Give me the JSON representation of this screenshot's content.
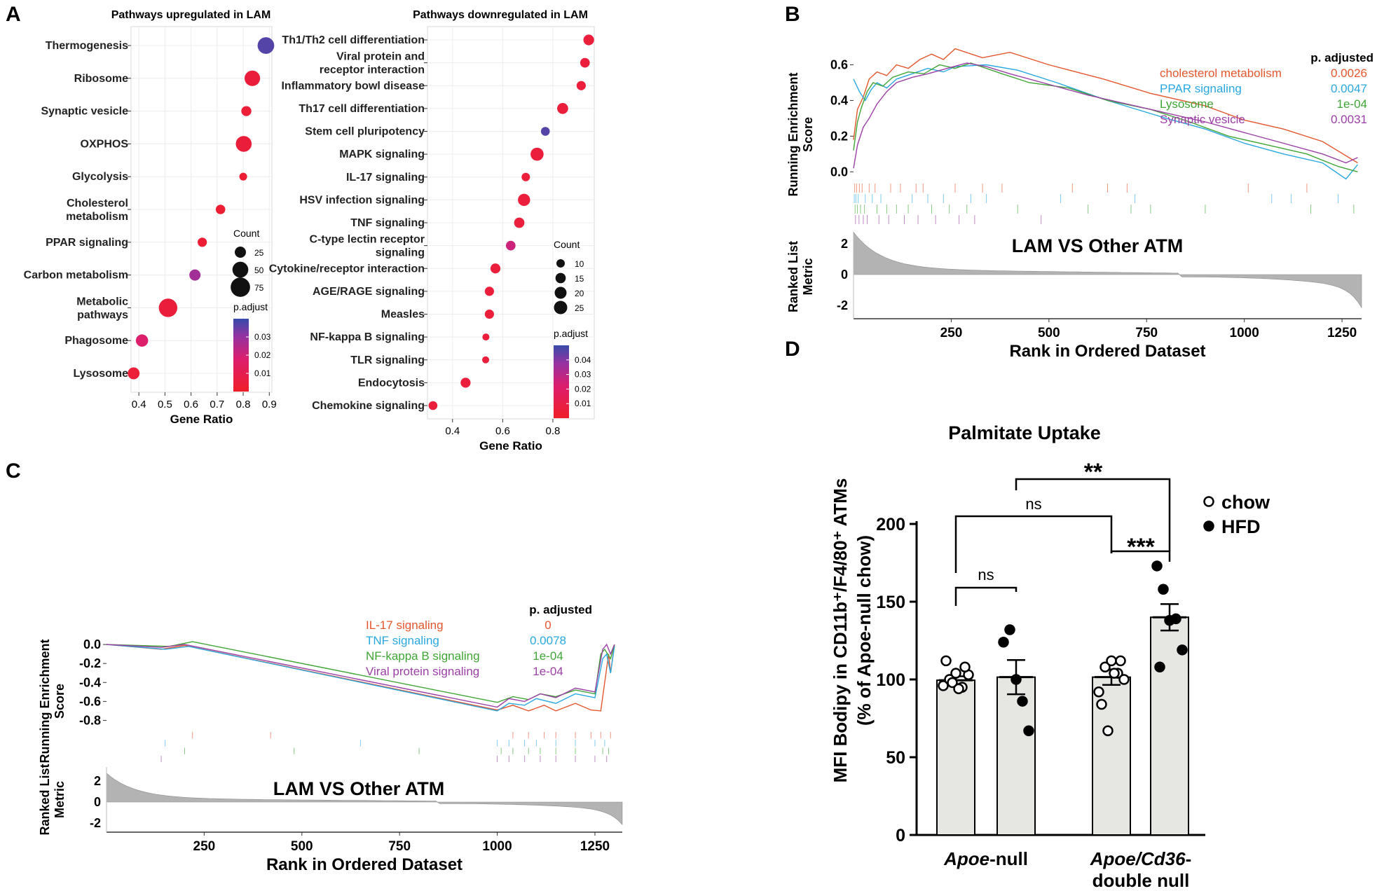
{
  "panels": {
    "A": "A",
    "B": "B",
    "C": "C",
    "D": "D"
  },
  "chart_data": [
    {
      "id": "A_up",
      "type": "scatter",
      "title": "Pathways upregulated in LAM",
      "xlabel": "Gene Ratio",
      "xlim": [
        0.37,
        0.91
      ],
      "xticks": [
        0.4,
        0.5,
        0.6,
        0.7,
        0.8,
        0.9
      ],
      "categories": [
        "Thermogenesis",
        "Ribosome",
        "Synaptic vesicle",
        "OXPHOS",
        "Glycolysis",
        "Cholesterol\nmetabolism",
        "PPAR signaling",
        "Carbon metabolism",
        "Metabolic\npathways",
        "Phagosome",
        "Lysosome"
      ],
      "x": [
        0.887,
        0.835,
        0.812,
        0.802,
        0.8,
        0.713,
        0.643,
        0.615,
        0.512,
        0.412,
        0.38
      ],
      "count": [
        55,
        48,
        20,
        50,
        12,
        18,
        17,
        25,
        68,
        30,
        28
      ],
      "padjust": [
        0.037,
        0.005,
        0.004,
        0.005,
        0.003,
        0.003,
        0.003,
        0.028,
        0.005,
        0.017,
        0.004
      ],
      "size_legend": {
        "title": "Count",
        "values": [
          25,
          50,
          75
        ]
      },
      "color_legend": {
        "title": "p.adjust",
        "ticks": [
          0.03,
          0.02,
          0.01
        ],
        "range": [
          0.0,
          0.04
        ]
      }
    },
    {
      "id": "A_down",
      "type": "scatter",
      "title": "Pathways downregulated in LAM",
      "xlabel": "Gene Ratio",
      "xlim": [
        0.3,
        0.965
      ],
      "xticks": [
        0.4,
        0.6,
        0.8
      ],
      "categories": [
        "Th1/Th2 cell differentiation",
        "Viral protein and\nreceptor interaction",
        "Inflammatory bowl disease",
        "Th17 cell differentiation",
        "Stem cell pluripotency",
        "MAPK signaling",
        "IL-17 signaling",
        "HSV infection signaling",
        "TNF signaling",
        "C-type lectin receptor\nsignaling",
        "Cytokine/receptor interaction",
        "AGE/RAGE signaling",
        "Measles",
        "NF-kappa B signaling",
        "TLR signaling",
        "Endocytosis",
        "Chemokine signaling"
      ],
      "x": [
        0.943,
        0.928,
        0.913,
        0.839,
        0.77,
        0.737,
        0.692,
        0.685,
        0.666,
        0.632,
        0.571,
        0.547,
        0.547,
        0.533,
        0.532,
        0.452,
        0.322
      ],
      "count": [
        16,
        13,
        12,
        17,
        11,
        24,
        10,
        21,
        15,
        13,
        14,
        12,
        12,
        7,
        7,
        14,
        11
      ],
      "padjust": [
        0.006,
        0.006,
        0.006,
        0.006,
        0.046,
        0.006,
        0.006,
        0.006,
        0.006,
        0.026,
        0.006,
        0.006,
        0.006,
        0.006,
        0.006,
        0.006,
        0.006
      ],
      "size_legend": {
        "title": "Count",
        "values": [
          10,
          15,
          20,
          25
        ]
      },
      "color_legend": {
        "title": "p.adjust",
        "ticks": [
          0.04,
          0.03,
          0.02,
          0.01
        ],
        "range": [
          0.0,
          0.05
        ]
      }
    },
    {
      "id": "B",
      "type": "line",
      "title": "LAM VS  Other ATM",
      "ylabel_top": "Running Enrichment\nScore",
      "ylabel_bottom": "Ranked List\nMetric",
      "xlabel": "Rank in Ordered Dataset",
      "xlim": [
        0,
        1300
      ],
      "xticks": [
        250,
        500,
        750,
        1000,
        1250
      ],
      "ylim": [
        -0.05,
        0.72
      ],
      "yticks": [
        0.0,
        0.2,
        0.4,
        0.6
      ],
      "metric_yticks": [
        2,
        0,
        -2
      ],
      "legend_title": "p. adjusted",
      "series": [
        {
          "name": "cholesterol metabolism",
          "padj": "0.0026",
          "color": "#e4572e",
          "points": [
            [
              0,
              0.18
            ],
            [
              10,
              0.35
            ],
            [
              25,
              0.42
            ],
            [
              40,
              0.52
            ],
            [
              60,
              0.56
            ],
            [
              85,
              0.54
            ],
            [
              110,
              0.6
            ],
            [
              140,
              0.58
            ],
            [
              170,
              0.63
            ],
            [
              200,
              0.66
            ],
            [
              230,
              0.63
            ],
            [
              260,
              0.69
            ],
            [
              330,
              0.64
            ],
            [
              400,
              0.67
            ],
            [
              500,
              0.6
            ],
            [
              640,
              0.52
            ],
            [
              760,
              0.44
            ],
            [
              900,
              0.37
            ],
            [
              1000,
              0.29
            ],
            [
              1100,
              0.24
            ],
            [
              1200,
              0.17
            ],
            [
              1290,
              0.05
            ]
          ]
        },
        {
          "name": "PPAR signaling",
          "padj": "0.0047",
          "color": "#29a8e0",
          "points": [
            [
              0,
              0.52
            ],
            [
              15,
              0.45
            ],
            [
              30,
              0.4
            ],
            [
              45,
              0.46
            ],
            [
              60,
              0.5
            ],
            [
              85,
              0.47
            ],
            [
              110,
              0.52
            ],
            [
              150,
              0.55
            ],
            [
              190,
              0.58
            ],
            [
              230,
              0.56
            ],
            [
              260,
              0.59
            ],
            [
              340,
              0.6
            ],
            [
              420,
              0.57
            ],
            [
              520,
              0.5
            ],
            [
              650,
              0.4
            ],
            [
              800,
              0.3
            ],
            [
              900,
              0.24
            ],
            [
              1000,
              0.16
            ],
            [
              1100,
              0.1
            ],
            [
              1200,
              0.05
            ],
            [
              1260,
              -0.04
            ],
            [
              1290,
              0.04
            ]
          ]
        },
        {
          "name": "Lysosome",
          "padj": "1e-04",
          "color": "#3fa535",
          "points": [
            [
              0,
              0.12
            ],
            [
              10,
              0.28
            ],
            [
              20,
              0.36
            ],
            [
              35,
              0.45
            ],
            [
              50,
              0.5
            ],
            [
              75,
              0.48
            ],
            [
              100,
              0.53
            ],
            [
              140,
              0.56
            ],
            [
              180,
              0.55
            ],
            [
              220,
              0.6
            ],
            [
              260,
              0.58
            ],
            [
              300,
              0.61
            ],
            [
              380,
              0.55
            ],
            [
              450,
              0.5
            ],
            [
              550,
              0.47
            ],
            [
              650,
              0.4
            ],
            [
              760,
              0.35
            ],
            [
              860,
              0.28
            ],
            [
              960,
              0.2
            ],
            [
              1060,
              0.15
            ],
            [
              1160,
              0.1
            ],
            [
              1240,
              0.03
            ],
            [
              1290,
              0.0
            ]
          ]
        },
        {
          "name": "Synaptic vesicle",
          "padj": "0.0031",
          "color": "#9b3fa6",
          "points": [
            [
              0,
              0.02
            ],
            [
              10,
              0.15
            ],
            [
              25,
              0.25
            ],
            [
              40,
              0.3
            ],
            [
              60,
              0.38
            ],
            [
              85,
              0.45
            ],
            [
              110,
              0.5
            ],
            [
              150,
              0.53
            ],
            [
              190,
              0.55
            ],
            [
              240,
              0.58
            ],
            [
              290,
              0.61
            ],
            [
              340,
              0.59
            ],
            [
              400,
              0.55
            ],
            [
              500,
              0.49
            ],
            [
              600,
              0.43
            ],
            [
              700,
              0.38
            ],
            [
              800,
              0.33
            ],
            [
              900,
              0.28
            ],
            [
              1000,
              0.22
            ],
            [
              1100,
              0.16
            ],
            [
              1200,
              0.1
            ],
            [
              1260,
              0.05
            ],
            [
              1290,
              0.08
            ]
          ]
        }
      ]
    },
    {
      "id": "C",
      "type": "line",
      "title": "LAM VS  Other ATM",
      "ylabel_top": "Running Enrichment\nScore",
      "ylabel_bottom": "Ranked List\nMetric",
      "xlabel": "Rank in Ordered Dataset",
      "xlim": [
        0,
        1320
      ],
      "xticks": [
        250,
        500,
        750,
        1000,
        1250
      ],
      "ylim": [
        -0.9,
        0.06
      ],
      "yticks": [
        0.0,
        -0.2,
        -0.4,
        -0.6,
        -0.8
      ],
      "metric_yticks": [
        2,
        0,
        -2
      ],
      "legend_title": "p. adjusted",
      "series": [
        {
          "name": "IL-17 signaling",
          "padj": "0",
          "color": "#e4572e",
          "points": [
            [
              0,
              0.0
            ],
            [
              140,
              -0.05
            ],
            [
              200,
              -0.01
            ],
            [
              1000,
              -0.69
            ],
            [
              1040,
              -0.64
            ],
            [
              1080,
              -0.7
            ],
            [
              1120,
              -0.64
            ],
            [
              1150,
              -0.7
            ],
            [
              1200,
              -0.62
            ],
            [
              1240,
              -0.69
            ],
            [
              1265,
              -0.7
            ],
            [
              1275,
              -0.4
            ],
            [
              1285,
              -0.1
            ],
            [
              1290,
              -0.3
            ],
            [
              1300,
              0.0
            ]
          ]
        },
        {
          "name": "TNF signaling",
          "padj": "0.0078",
          "color": "#29a8e0",
          "points": [
            [
              0,
              0.0
            ],
            [
              150,
              -0.05
            ],
            [
              210,
              -0.02
            ],
            [
              1000,
              -0.7
            ],
            [
              1030,
              -0.62
            ],
            [
              1070,
              -0.64
            ],
            [
              1100,
              -0.57
            ],
            [
              1150,
              -0.62
            ],
            [
              1200,
              -0.52
            ],
            [
              1250,
              -0.56
            ],
            [
              1270,
              -0.15
            ],
            [
              1280,
              -0.1
            ],
            [
              1290,
              -0.3
            ],
            [
              1300,
              -0.02
            ]
          ]
        },
        {
          "name": "NF-kappa B signaling",
          "padj": "1e-04",
          "color": "#3fa535",
          "points": [
            [
              0,
              0.0
            ],
            [
              160,
              -0.02
            ],
            [
              220,
              0.03
            ],
            [
              1000,
              -0.61
            ],
            [
              1040,
              -0.55
            ],
            [
              1080,
              -0.58
            ],
            [
              1110,
              -0.52
            ],
            [
              1150,
              -0.55
            ],
            [
              1200,
              -0.48
            ],
            [
              1250,
              -0.52
            ],
            [
              1265,
              -0.1
            ],
            [
              1275,
              -0.05
            ],
            [
              1290,
              -0.15
            ],
            [
              1300,
              0.0
            ]
          ]
        },
        {
          "name": "Viral protein signaling",
          "padj": "1e-04",
          "color": "#9b3fa6",
          "points": [
            [
              0,
              0.0
            ],
            [
              140,
              -0.03
            ],
            [
              200,
              0.0
            ],
            [
              1000,
              -0.66
            ],
            [
              1030,
              -0.57
            ],
            [
              1070,
              -0.6
            ],
            [
              1110,
              -0.52
            ],
            [
              1150,
              -0.56
            ],
            [
              1200,
              -0.46
            ],
            [
              1250,
              -0.5
            ],
            [
              1270,
              -0.05
            ],
            [
              1280,
              0.0
            ],
            [
              1290,
              -0.1
            ],
            [
              1300,
              0.0
            ]
          ]
        }
      ]
    },
    {
      "id": "D",
      "type": "bar",
      "title": "Palmitate Uptake",
      "ylabel": "MFI Bodipy in CD11b⁺/F4/80⁺ ATMs\n(% of Apoe-null chow)",
      "ylim": [
        0,
        200
      ],
      "yticks": [
        0,
        50,
        100,
        150,
        200
      ],
      "groups": [
        {
          "label_italic": "Apoe",
          "label_rest": "-null"
        },
        {
          "label_italic": "Apoe/Cd36",
          "label_rest": "-",
          "label_line2": "double null"
        }
      ],
      "series": [
        {
          "name": "chow",
          "marker": "open",
          "means": [
            99.5,
            101.5
          ],
          "sem": [
            2.5,
            5.0
          ],
          "points": [
            [
              96,
              100,
              104,
              95,
              103,
              112,
              98,
              94,
              108
            ],
            [
              92,
              108,
              112,
              104,
              100,
              84,
              67,
              104,
              112
            ]
          ]
        },
        {
          "name": "HFD",
          "marker": "filled",
          "means": [
            101.5,
            140.0
          ],
          "sem": [
            11.0,
            8.5
          ],
          "points": [
            [
              124,
              132,
              100,
              86,
              67
            ],
            [
              173,
              158,
              138,
              139,
              119,
              108
            ]
          ]
        }
      ],
      "significance": [
        {
          "label": "ns"
        },
        {
          "label": "ns"
        },
        {
          "label": "***"
        },
        {
          "label": "**"
        }
      ]
    }
  ]
}
